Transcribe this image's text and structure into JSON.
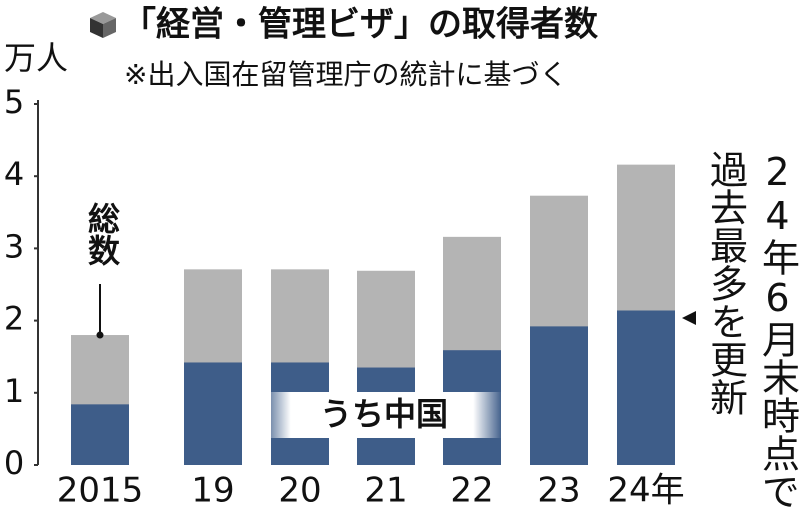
{
  "chart_data": {
    "type": "bar",
    "title": "「経営・管理ビザ」の取得者数",
    "subtitle": "※出入国在留管理庁の統計に基づく",
    "y_label": "万人",
    "categories": [
      "2015",
      "19",
      "20",
      "21",
      "22",
      "23",
      "24年"
    ],
    "series": [
      {
        "name": "総数",
        "color": "#b4b4b4",
        "values": [
          1.8,
          2.71,
          2.71,
          2.69,
          3.16,
          3.73,
          4.16
        ]
      },
      {
        "name": "うち中国",
        "color": "#3e5d89",
        "values": [
          0.84,
          1.42,
          1.42,
          1.35,
          1.59,
          1.92,
          2.14
        ]
      }
    ],
    "ylim": [
      0,
      5
    ],
    "yticks": [
      0,
      1,
      2,
      3,
      4,
      5
    ],
    "grid": false,
    "annotation": [
      "24年6月末時点で",
      "過去最多を更新"
    ]
  }
}
